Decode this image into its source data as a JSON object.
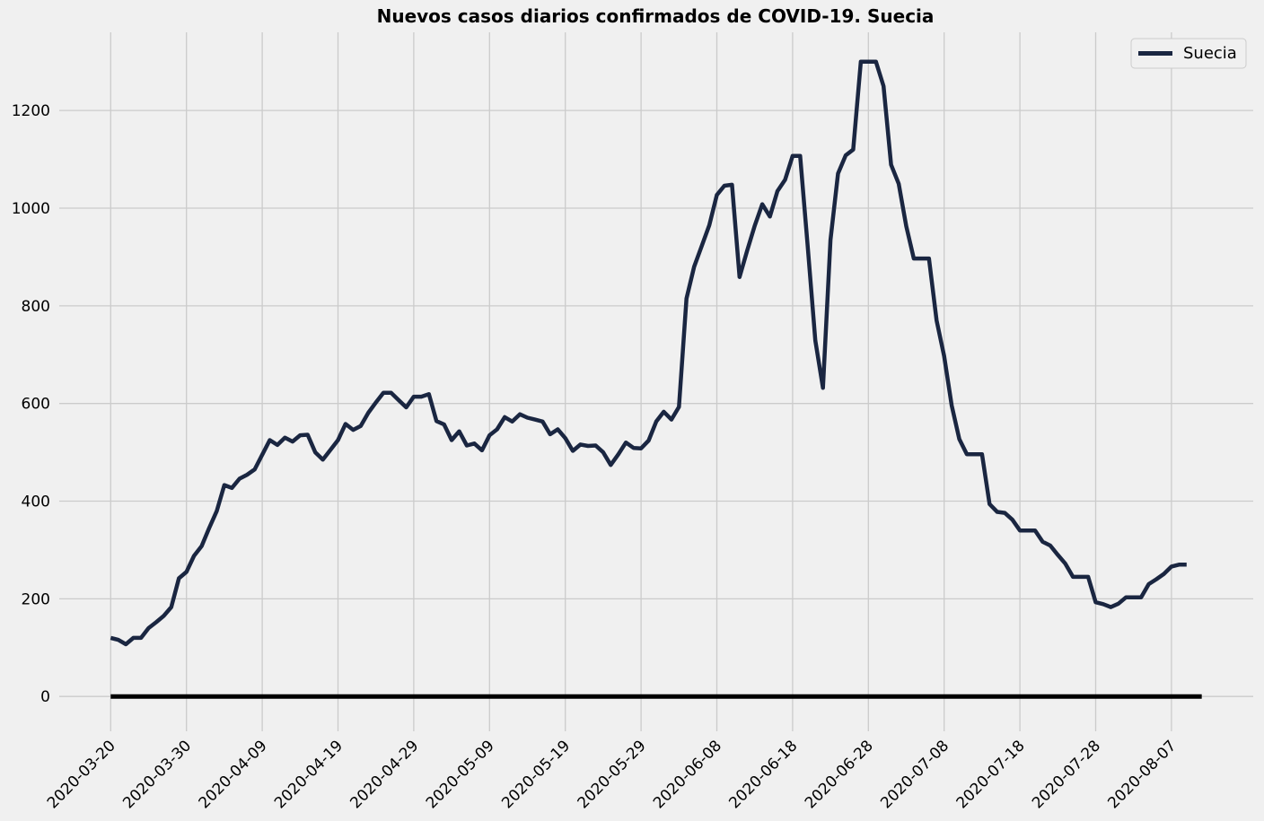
{
  "chart_data": {
    "type": "line",
    "title": "Nuevos casos diarios confirmados de COVID-19. Suecia",
    "xlabel": "",
    "ylabel": "",
    "ylim": [
      -75,
      1385
    ],
    "grid": true,
    "legend_position": "top-right",
    "colors": {
      "series": "#1a2641",
      "baseline": "#000000",
      "grid": "#cbcbcb",
      "background": "#f0f0f0"
    },
    "x_ticks": [
      "2020-03-20",
      "2020-03-30",
      "2020-04-09",
      "2020-04-19",
      "2020-04-29",
      "2020-05-09",
      "2020-05-19",
      "2020-05-29",
      "2020-06-08",
      "2020-06-18",
      "2020-06-28",
      "2020-07-08",
      "2020-07-18",
      "2020-07-28",
      "2020-08-07"
    ],
    "y_ticks": [
      0,
      200,
      400,
      600,
      800,
      1000,
      1200
    ],
    "baseline": {
      "y": 0,
      "x_start": "2020-03-20",
      "x_end": "2020-08-11"
    },
    "series": [
      {
        "name": "Suecia",
        "x_start": "2020-03-20",
        "x_end": "2020-08-10",
        "values": [
          120,
          116,
          107,
          120,
          120,
          140,
          152,
          165,
          183,
          242,
          255,
          288,
          308,
          345,
          380,
          433,
          427,
          446,
          454,
          465,
          495,
          525,
          515,
          530,
          522,
          535,
          536,
          500,
          485,
          505,
          525,
          558,
          546,
          554,
          581,
          602,
          622,
          622,
          607,
          592,
          614,
          614,
          619,
          564,
          557,
          525,
          543,
          514,
          518,
          504,
          535,
          547,
          572,
          563,
          578,
          571,
          567,
          563,
          537,
          547,
          529,
          503,
          516,
          513,
          514,
          500,
          474,
          496,
          520,
          509,
          508,
          524,
          563,
          583,
          567,
          593,
          815,
          880,
          922,
          965,
          1027,
          1046,
          1048,
          859,
          913,
          964,
          1008,
          983,
          1035,
          1058,
          1107,
          1107,
          920,
          729,
          632,
          935,
          1071,
          1108,
          1120,
          1300,
          1300,
          1300,
          1250,
          1089,
          1050,
          963,
          897,
          897,
          897,
          770,
          697,
          596,
          527,
          496,
          496,
          496,
          394,
          378,
          376,
          362,
          340,
          340,
          340,
          317,
          309,
          290,
          272,
          245,
          245,
          245,
          193,
          189,
          183,
          190,
          203,
          203,
          203,
          230,
          240,
          251,
          266,
          270,
          270
        ]
      }
    ]
  }
}
